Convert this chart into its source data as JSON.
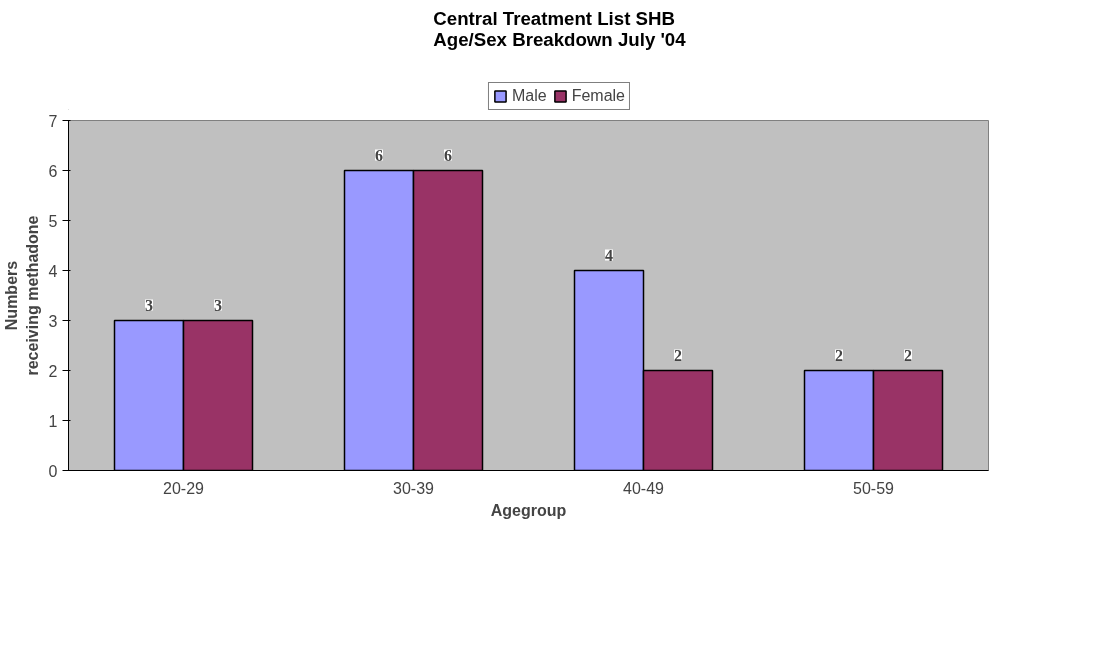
{
  "chart_data": {
    "type": "bar",
    "title": "Central Treatment List SHB\nAge/Sex Breakdown July '04",
    "xlabel": "Agegroup",
    "ylabel": "Numbers\nreceiving methadone",
    "categories": [
      "20-29",
      "30-39",
      "40-49",
      "50-59"
    ],
    "series": [
      {
        "name": "Male",
        "color": "#9999ff",
        "values": [
          3,
          6,
          4,
          2
        ]
      },
      {
        "name": "Female",
        "color": "#993366",
        "values": [
          3,
          6,
          2,
          2
        ]
      }
    ],
    "ylim": [
      0,
      7
    ],
    "yticks": [
      0,
      1,
      2,
      3,
      4,
      5,
      6,
      7
    ],
    "grid": false,
    "legend": "top",
    "data_labels": true
  }
}
